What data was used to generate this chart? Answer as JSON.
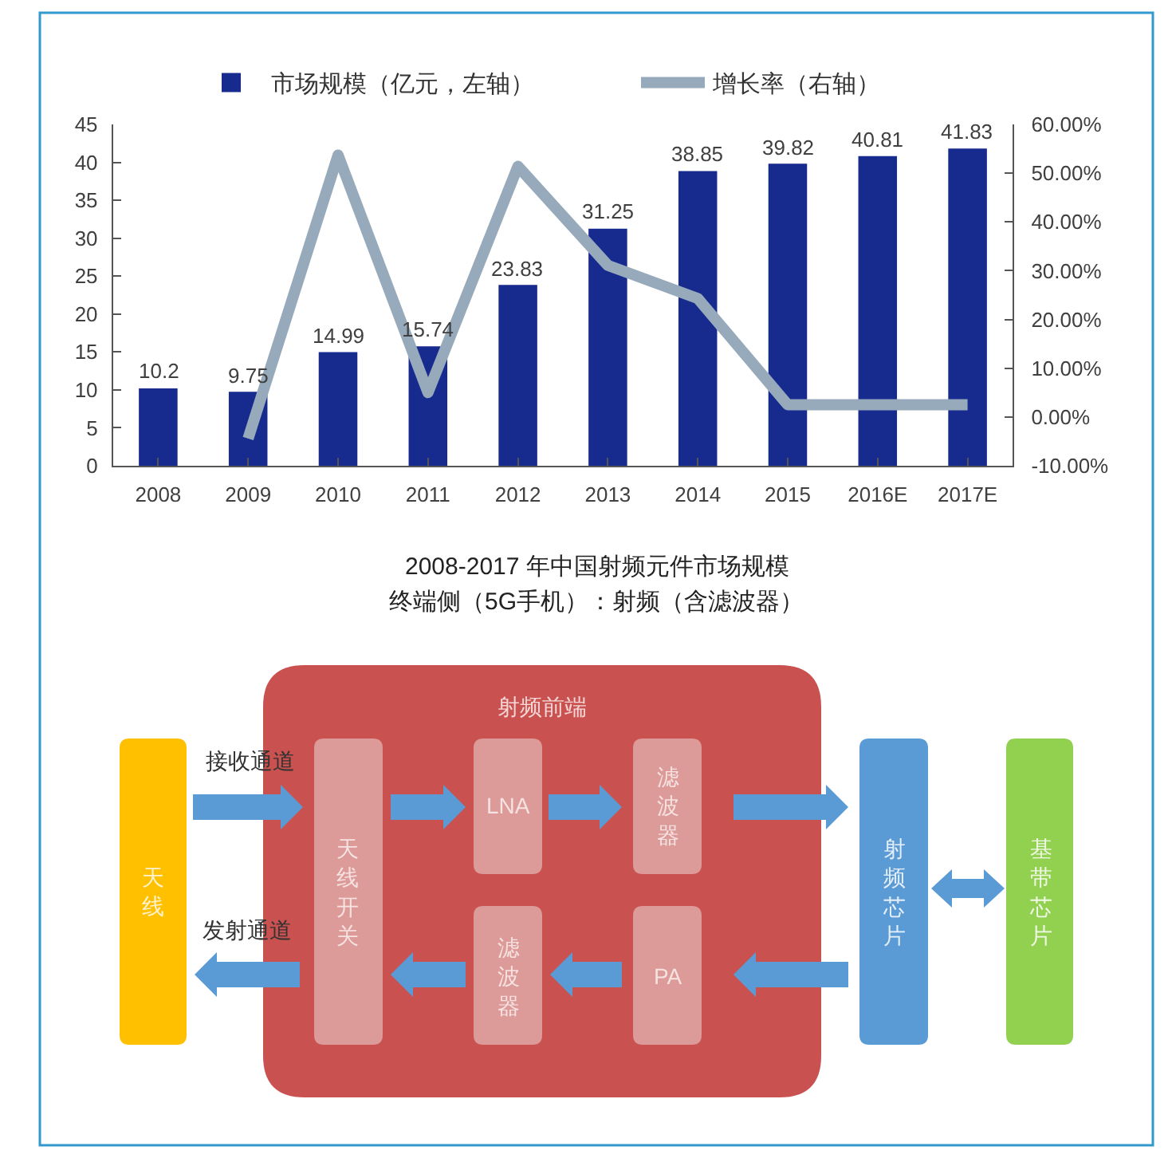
{
  "chart_data": [
    {
      "type": "bar",
      "title": "2008-2017 年中国射频元件市场规模",
      "categories": [
        "2008",
        "2009",
        "2010",
        "2011",
        "2012",
        "2013",
        "2014",
        "2015",
        "2016E",
        "2017E"
      ],
      "series": [
        {
          "name": "市场规模（亿元，左轴）",
          "color": "#172a8e",
          "values": [
            10.2,
            9.75,
            14.99,
            15.74,
            23.83,
            31.25,
            38.85,
            39.82,
            40.81,
            41.83
          ],
          "value_labels": [
            "10.2",
            "9.75",
            "14.99",
            "15.74",
            "23.83",
            "31.25",
            "38.85",
            "39.82",
            "40.81",
            "41.83"
          ]
        },
        {
          "name": "增长率（右轴）",
          "type": "line",
          "axis": "y2",
          "color": "#97aabb",
          "values": [
            null,
            -4.4,
            53.7,
            5.0,
            51.4,
            31.1,
            24.3,
            2.5,
            2.5,
            2.5
          ]
        }
      ],
      "ylim": [
        0,
        45
      ],
      "yticks": [
        0,
        5,
        10,
        15,
        20,
        25,
        30,
        35,
        40,
        45
      ],
      "y2lim": [
        -10,
        60
      ],
      "y2ticks": [
        {
          "value": -10,
          "label": "-10.00%"
        },
        {
          "value": 0,
          "label": "0.00%"
        },
        {
          "value": 10,
          "label": "10.00%"
        },
        {
          "value": 20,
          "label": "20.00%"
        },
        {
          "value": 30,
          "label": "30.00%"
        },
        {
          "value": 40,
          "label": "40.00%"
        },
        {
          "value": 50,
          "label": "50.00%"
        },
        {
          "value": 60,
          "label": "60.00%"
        }
      ],
      "legend": "top"
    },
    {
      "type": "other",
      "title": "终端侧（5G手机）：射频（含滤波器）",
      "annotations": [
        "射频前端",
        "天线",
        "接收通道",
        "发射通道",
        "天线开关",
        "LNA",
        "滤波器",
        "滤波器",
        "PA",
        "射频芯片",
        "基带芯片"
      ]
    }
  ]
}
